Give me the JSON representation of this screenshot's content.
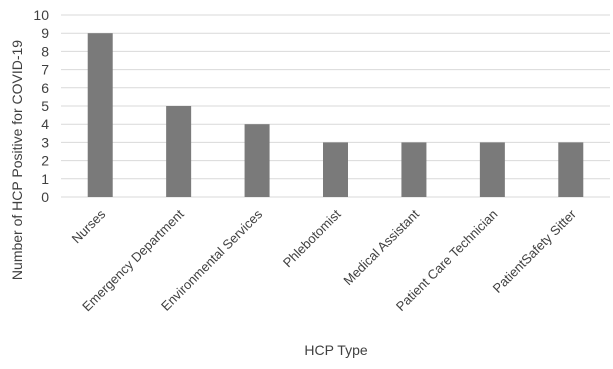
{
  "chart_data": {
    "type": "bar",
    "title": "",
    "xlabel": "HCP Type",
    "ylabel": "Number of HCP Positive for COVID-19",
    "categories": [
      "Nurses",
      "Emergency Department",
      "Environmental Services",
      "Phlebotomist",
      "Medical Assistant",
      "Patient Care Technician",
      "PatientSafety Sitter"
    ],
    "values": [
      9,
      5,
      4,
      3,
      3,
      3,
      3
    ],
    "ylim": [
      0,
      10
    ],
    "yticks": [
      "0",
      "1",
      "2",
      "3",
      "4",
      "5",
      "6",
      "7",
      "8",
      "9",
      "10"
    ],
    "grid": true,
    "bar_color": "#7a7a7a",
    "grid_color": "#d9d9d9",
    "legend": "none"
  }
}
